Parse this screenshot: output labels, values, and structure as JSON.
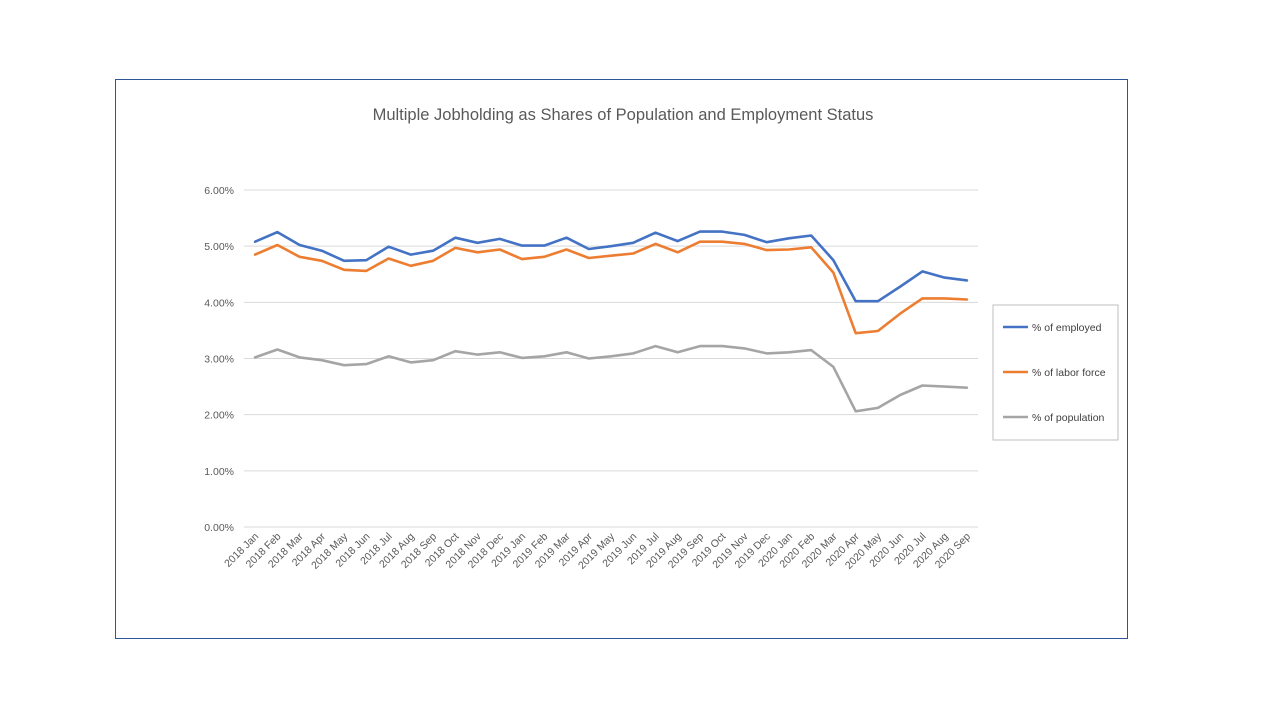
{
  "chart_data": {
    "type": "line",
    "title": "Multiple Jobholding as Shares of Population and Employment Status",
    "xlabel": "",
    "ylabel": "",
    "ylim": [
      0,
      6
    ],
    "y_tick_labels": [
      "0.00%",
      "1.00%",
      "2.00%",
      "3.00%",
      "4.00%",
      "5.00%",
      "6.00%"
    ],
    "grid": true,
    "legend_position": "right",
    "categories": [
      "2018 Jan",
      "2018 Feb",
      "2018 Mar",
      "2018 Apr",
      "2018 May",
      "2018 Jun",
      "2018 Jul",
      "2018 Aug",
      "2018 Sep",
      "2018 Oct",
      "2018 Nov",
      "2018 Dec",
      "2019 Jan",
      "2019 Feb",
      "2019 Mar",
      "2019 Apr",
      "2019 May",
      "2019 Jun",
      "2019 Jul",
      "2019 Aug",
      "2019 Sep",
      "2019 Oct",
      "2019 Nov",
      "2019 Dec",
      "2020 Jan",
      "2020 Feb",
      "2020 Mar",
      "2020 Apr",
      "2020 May",
      "2020 Jun",
      "2020 Jul",
      "2020 Aug",
      "2020 Sep"
    ],
    "series": [
      {
        "name": "% of employed",
        "color": "#4472c4",
        "values": [
          5.08,
          5.25,
          5.02,
          4.92,
          4.74,
          4.75,
          4.99,
          4.85,
          4.92,
          5.15,
          5.06,
          5.13,
          5.01,
          5.01,
          5.15,
          4.95,
          5.0,
          5.06,
          5.24,
          5.09,
          5.26,
          5.26,
          5.2,
          5.07,
          5.14,
          5.19,
          4.75,
          4.02,
          4.02,
          4.28,
          4.55,
          4.44,
          4.39
        ]
      },
      {
        "name": "% of labor force",
        "color": "#ed7d31",
        "values": [
          4.85,
          5.02,
          4.81,
          4.74,
          4.58,
          4.56,
          4.78,
          4.65,
          4.74,
          4.97,
          4.89,
          4.94,
          4.77,
          4.81,
          4.94,
          4.79,
          4.83,
          4.87,
          5.04,
          4.89,
          5.08,
          5.08,
          5.04,
          4.93,
          4.94,
          4.98,
          4.53,
          3.45,
          3.49,
          3.8,
          4.07,
          4.07,
          4.05
        ]
      },
      {
        "name": "% of population",
        "color": "#a5a5a5",
        "values": [
          3.02,
          3.16,
          3.02,
          2.97,
          2.88,
          2.9,
          3.04,
          2.93,
          2.97,
          3.13,
          3.07,
          3.11,
          3.01,
          3.04,
          3.11,
          3.0,
          3.04,
          3.09,
          3.22,
          3.11,
          3.22,
          3.22,
          3.18,
          3.09,
          3.11,
          3.15,
          2.85,
          2.06,
          2.12,
          2.35,
          2.52,
          2.5,
          2.48
        ]
      }
    ]
  }
}
